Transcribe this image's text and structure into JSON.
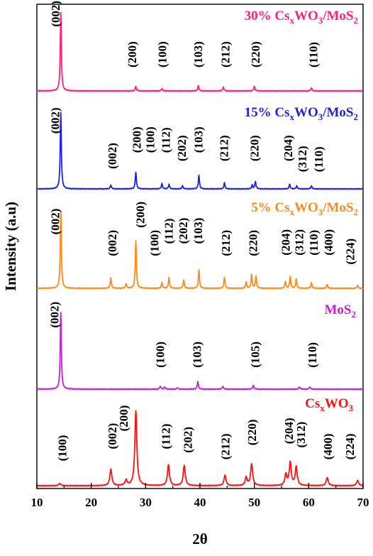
{
  "chart_data": {
    "type": "line",
    "xlabel": "2θ",
    "ylabel": "Intensity (a.u)",
    "xlim": [
      10,
      70
    ],
    "x_ticks": [
      "10",
      "20",
      "30",
      "40",
      "50",
      "60",
      "70"
    ],
    "y_ticks": "none",
    "stacked_offset": true,
    "grid": false,
    "series": [
      {
        "name_parts": [
          [
            "30% Cs",
            ""
          ],
          [
            "x",
            "sub"
          ],
          [
            "WO",
            ""
          ],
          [
            "3",
            "sub"
          ],
          [
            "/MoS",
            ""
          ],
          [
            "2",
            "sub"
          ]
        ],
        "color": "#ff1f7a",
        "peaks": [
          [
            14.4,
            100
          ],
          [
            28.2,
            6
          ],
          [
            33.0,
            3
          ],
          [
            39.7,
            7
          ],
          [
            44.3,
            5
          ],
          [
            50.0,
            6
          ],
          [
            60.5,
            4
          ]
        ],
        "labels": [
          {
            "text": "(002)",
            "x": 13.4,
            "y": 82
          },
          {
            "text": "(200)",
            "x": 27.5,
            "y": 30
          },
          {
            "text": "(100)",
            "x": 33.0,
            "y": 30
          },
          {
            "text": "(103)",
            "x": 39.6,
            "y": 30
          },
          {
            "text": "(212)",
            "x": 44.6,
            "y": 30
          },
          {
            "text": "(220)",
            "x": 50.2,
            "y": 30
          },
          {
            "text": "(110)",
            "x": 60.8,
            "y": 30
          }
        ]
      },
      {
        "name_parts": [
          [
            "15% Cs",
            ""
          ],
          [
            "x",
            "sub"
          ],
          [
            "WO",
            ""
          ],
          [
            "3",
            "sub"
          ],
          [
            "/MoS",
            ""
          ],
          [
            "2",
            "sub"
          ]
        ],
        "color": "#1f1fe6",
        "peaks": [
          [
            14.4,
            100
          ],
          [
            23.6,
            5
          ],
          [
            28.2,
            22
          ],
          [
            33.0,
            7
          ],
          [
            34.3,
            6
          ],
          [
            36.8,
            4
          ],
          [
            39.8,
            18
          ],
          [
            44.5,
            8
          ],
          [
            49.6,
            5
          ],
          [
            50.2,
            10
          ],
          [
            56.5,
            6
          ],
          [
            57.8,
            4
          ],
          [
            60.5,
            4
          ]
        ],
        "labels": [
          {
            "text": "(002)",
            "x": 13.3,
            "y": 72
          },
          {
            "text": "(002)",
            "x": 23.8,
            "y": 26
          },
          {
            "text": "(200)",
            "x": 28.3,
            "y": 47
          },
          {
            "text": "(100)",
            "x": 30.8,
            "y": 47
          },
          {
            "text": "(112)",
            "x": 33.7,
            "y": 47
          },
          {
            "text": "(202)",
            "x": 36.6,
            "y": 36
          },
          {
            "text": "(103)",
            "x": 39.7,
            "y": 47
          },
          {
            "text": "(212)",
            "x": 44.4,
            "y": 36
          },
          {
            "text": "(220)",
            "x": 50.0,
            "y": 36
          },
          {
            "text": "(204)",
            "x": 56.2,
            "y": 36
          },
          {
            "text": "(312)",
            "x": 58.8,
            "y": 22
          },
          {
            "text": "(110)",
            "x": 61.8,
            "y": 22
          }
        ]
      },
      {
        "name_parts": [
          [
            "5% Cs",
            ""
          ],
          [
            "x",
            "sub"
          ],
          [
            "WO",
            ""
          ],
          [
            "3",
            "sub"
          ],
          [
            "/MoS",
            ""
          ],
          [
            "2",
            "sub"
          ]
        ],
        "color": "#ff8a14",
        "peaks": [
          [
            14.4,
            100
          ],
          [
            23.6,
            14
          ],
          [
            26.4,
            6
          ],
          [
            28.2,
            62
          ],
          [
            33.0,
            7
          ],
          [
            34.3,
            14
          ],
          [
            37.0,
            11
          ],
          [
            39.8,
            24
          ],
          [
            44.5,
            14
          ],
          [
            48.5,
            8
          ],
          [
            49.5,
            18
          ],
          [
            50.3,
            16
          ],
          [
            55.7,
            9
          ],
          [
            56.6,
            16
          ],
          [
            57.7,
            12
          ],
          [
            60.5,
            7
          ],
          [
            63.4,
            5
          ],
          [
            69.0,
            4
          ]
        ],
        "labels": [
          {
            "text": "(002)",
            "x": 13.3,
            "y": 70
          },
          {
            "text": "(002)",
            "x": 23.8,
            "y": 42
          },
          {
            "text": "(200)",
            "x": 29.0,
            "y": 79
          },
          {
            "text": "(100)",
            "x": 31.6,
            "y": 42
          },
          {
            "text": "(112)",
            "x": 34.2,
            "y": 58
          },
          {
            "text": "(202)",
            "x": 36.9,
            "y": 58
          },
          {
            "text": "(103)",
            "x": 39.6,
            "y": 58
          },
          {
            "text": "(212)",
            "x": 44.7,
            "y": 42
          },
          {
            "text": "(220)",
            "x": 49.7,
            "y": 42
          },
          {
            "text": "(204)",
            "x": 55.7,
            "y": 43
          },
          {
            "text": "(312)",
            "x": 58.2,
            "y": 43
          },
          {
            "text": "(110)",
            "x": 60.9,
            "y": 43
          },
          {
            "text": "(400)",
            "x": 63.6,
            "y": 43
          },
          {
            "text": "(224)",
            "x": 67.6,
            "y": 31
          }
        ]
      },
      {
        "name_parts": [
          [
            "MoS",
            ""
          ],
          [
            "2",
            "sub"
          ]
        ],
        "color": "#c21fd6",
        "peaks": [
          [
            14.4,
            100
          ],
          [
            32.7,
            4
          ],
          [
            33.5,
            3
          ],
          [
            35.9,
            2
          ],
          [
            39.6,
            10
          ],
          [
            44.2,
            4
          ],
          [
            49.8,
            5
          ],
          [
            58.3,
            3
          ],
          [
            60.2,
            3
          ]
        ],
        "labels": [
          {
            "text": "(002)",
            "x": 13.2,
            "y": 80
          },
          {
            "text": "(100)",
            "x": 32.6,
            "y": 28
          },
          {
            "text": "(103)",
            "x": 39.4,
            "y": 28
          },
          {
            "text": "(105)",
            "x": 50.1,
            "y": 28
          },
          {
            "text": "(110)",
            "x": 60.6,
            "y": 28
          }
        ]
      },
      {
        "name_parts": [
          [
            "Cs",
            ""
          ],
          [
            "x",
            "sub"
          ],
          [
            "WO",
            ""
          ],
          [
            "3",
            "sub"
          ]
        ],
        "color": "#ff1010",
        "peaks": [
          [
            14.2,
            3
          ],
          [
            23.6,
            22
          ],
          [
            26.4,
            7
          ],
          [
            28.2,
            100
          ],
          [
            34.2,
            28
          ],
          [
            37.1,
            27
          ],
          [
            44.6,
            14
          ],
          [
            48.5,
            11
          ],
          [
            49.5,
            29
          ],
          [
            55.8,
            15
          ],
          [
            56.6,
            31
          ],
          [
            57.7,
            25
          ],
          [
            63.4,
            11
          ],
          [
            69.0,
            7
          ]
        ],
        "labels": [
          {
            "text": "(100)",
            "x": 14.6,
            "y": 33
          },
          {
            "text": "(002)",
            "x": 23.8,
            "y": 49
          },
          {
            "text": "(200)",
            "x": 25.9,
            "y": 73
          },
          {
            "text": "(112)",
            "x": 33.7,
            "y": 49
          },
          {
            "text": "(202)",
            "x": 37.7,
            "y": 44
          },
          {
            "text": "(212)",
            "x": 44.6,
            "y": 35
          },
          {
            "text": "(220)",
            "x": 49.5,
            "y": 54
          },
          {
            "text": "(204)",
            "x": 56.3,
            "y": 56
          },
          {
            "text": "(312)",
            "x": 58.5,
            "y": 51
          },
          {
            "text": "(400)",
            "x": 63.5,
            "y": 35
          },
          {
            "text": "(224)",
            "x": 67.5,
            "y": 35
          }
        ]
      }
    ]
  }
}
